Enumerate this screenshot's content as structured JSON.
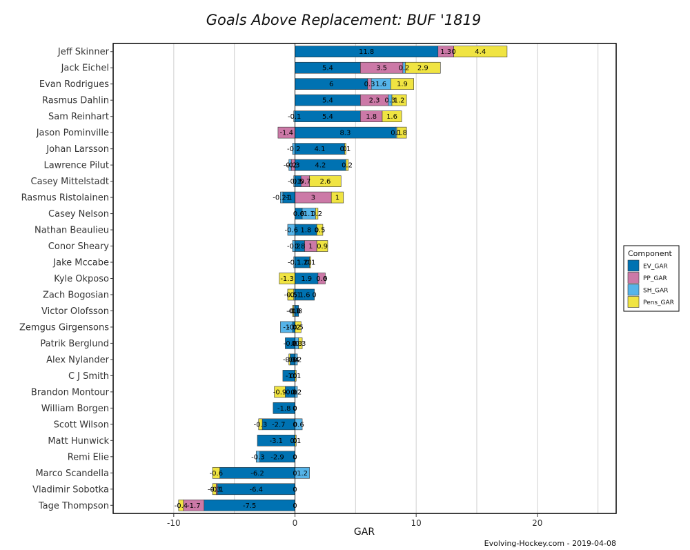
{
  "chart_data": {
    "type": "bar",
    "orientation": "horizontal",
    "stacked": true,
    "title": "Goals Above Replacement: BUF '1819",
    "xlabel": "GAR",
    "ylabel": "",
    "xlim": [
      -15,
      26.5
    ],
    "xticks": [
      -10,
      0,
      10,
      20
    ],
    "xtick_labels": [
      "-10",
      "0",
      "10",
      "20"
    ],
    "grid": true,
    "legend_position": "right",
    "legend_title": "Component",
    "caption": "Evolving-Hockey.com - 2019-04-08",
    "series": [
      {
        "name": "EV_GAR",
        "color": "#0072b2"
      },
      {
        "name": "PP_GAR",
        "color": "#cc79a7"
      },
      {
        "name": "SH_GAR",
        "color": "#56b4e9"
      },
      {
        "name": "Pens_GAR",
        "color": "#f0e442"
      }
    ],
    "rows": [
      {
        "player": "Jeff Skinner",
        "values": [
          11.8,
          1.3,
          0,
          4.4
        ],
        "labels": [
          "11.8",
          "1.3",
          "0",
          "4.4"
        ]
      },
      {
        "player": "Jack Eichel",
        "values": [
          5.4,
          3.5,
          0.2,
          2.9
        ],
        "labels": [
          "5.4",
          "3.5",
          "0.2",
          "2.9"
        ]
      },
      {
        "player": "Evan Rodrigues",
        "values": [
          6,
          0.3,
          1.6,
          1.9
        ],
        "labels": [
          "6",
          "0.3",
          "1.6",
          "1.9"
        ]
      },
      {
        "player": "Rasmus Dahlin",
        "values": [
          5.4,
          2.3,
          0.3,
          1.2
        ],
        "labels": [
          "5.4",
          "2.3",
          "0.3",
          "1.2"
        ]
      },
      {
        "player": "Sam Reinhart",
        "values": [
          5.4,
          1.8,
          -0.1,
          1.6
        ],
        "labels": [
          "5.4",
          "1.8",
          "-0.1",
          "1.6"
        ]
      },
      {
        "player": "Jason Pominville",
        "values": [
          8.3,
          -1.4,
          0.1,
          0.8
        ],
        "labels": [
          "8.3",
          "-1.4",
          "0.1",
          "0.8"
        ]
      },
      {
        "player": "Johan Larsson",
        "values": [
          4.1,
          0,
          -0.2,
          0.1
        ],
        "labels": [
          "4.1",
          "0",
          "-0.2",
          "0.1"
        ]
      },
      {
        "player": "Lawrence Pilut",
        "values": [
          4.2,
          -0.3,
          -0.2,
          0.2
        ],
        "labels": [
          "4.2",
          "-0.3",
          "-0.2",
          "0.2"
        ]
      },
      {
        "player": "Casey Mittelstadt",
        "values": [
          0.5,
          0.7,
          -0.1,
          2.6
        ],
        "labels": [
          "0.5",
          "0.7",
          "-0.1",
          "2.6"
        ]
      },
      {
        "player": "Rasmus Ristolainen",
        "values": [
          -1,
          3,
          -0.2,
          1
        ],
        "labels": [
          "-1",
          "3",
          "-0.21",
          "1"
        ]
      },
      {
        "player": "Casey Nelson",
        "values": [
          0.6,
          0,
          1.1,
          0.2
        ],
        "labels": [
          "0.6",
          "0",
          "1.1",
          "0.2"
        ]
      },
      {
        "player": "Nathan Beaulieu",
        "values": [
          1.8,
          0,
          -0.6,
          0.5
        ],
        "labels": [
          "1.8",
          "0",
          "-0.6",
          "0.5"
        ]
      },
      {
        "player": "Conor Sheary",
        "values": [
          0.8,
          1,
          -0.2,
          0.9
        ],
        "labels": [
          "0.8",
          "1",
          "-0.2",
          "0.9"
        ]
      },
      {
        "player": "Jake Mccabe",
        "values": [
          1.2,
          0,
          -0.1,
          0.1
        ],
        "labels": [
          "1.2",
          "0",
          "-0.1",
          "0.1"
        ]
      },
      {
        "player": "Kyle Okposo",
        "values": [
          1.9,
          0.6,
          0,
          -1.3
        ],
        "labels": [
          "1.9",
          "0.6",
          "0",
          "-1.3"
        ]
      },
      {
        "player": "Zach Bogosian",
        "values": [
          1.6,
          0,
          -0.1,
          -0.5
        ],
        "labels": [
          "1.6",
          "0",
          "-0.1",
          "-0.5"
        ]
      },
      {
        "player": "Victor Olofsson",
        "values": [
          0.3,
          0,
          -0.1,
          -0.1
        ],
        "labels": [
          "0.3",
          "0",
          "-0.1",
          "-0.1"
        ]
      },
      {
        "player": "Zemgus Girgensons",
        "values": [
          -0.2,
          0,
          -1,
          0.5
        ],
        "labels": [
          "-0.2",
          "0",
          "-1",
          "0.5"
        ]
      },
      {
        "player": "Patrik Berglund",
        "values": [
          -0.8,
          0,
          0.3,
          0.3
        ],
        "labels": [
          "-0.8",
          "0",
          "0.3",
          "0.3"
        ]
      },
      {
        "player": "Alex Nylander",
        "values": [
          -0.4,
          0,
          0.2,
          -0.1
        ],
        "labels": [
          "-0.4",
          "0",
          "0.2",
          "-0.1"
        ]
      },
      {
        "player": "C J  Smith",
        "values": [
          -1,
          0,
          0,
          0.1
        ],
        "labels": [
          "-1",
          "0",
          "0",
          "0.1"
        ]
      },
      {
        "player": "Brandon Montour",
        "values": [
          -0.8,
          0,
          0.2,
          -0.9
        ],
        "labels": [
          "-0.8",
          "0",
          "0.2",
          "-0.9"
        ]
      },
      {
        "player": "William Borgen",
        "values": [
          -1.8,
          0,
          0,
          0
        ],
        "labels": [
          "-1.8",
          "0",
          "0",
          "0"
        ]
      },
      {
        "player": "Scott Wilson",
        "values": [
          -2.7,
          0,
          0.6,
          -0.3
        ],
        "labels": [
          "-2.7",
          "0",
          "0.6",
          "-0.3"
        ]
      },
      {
        "player": "Matt Hunwick",
        "values": [
          -3.1,
          0,
          0,
          0.1
        ],
        "labels": [
          "-3.1",
          "0",
          "0",
          "0.1"
        ]
      },
      {
        "player": "Remi Elie",
        "values": [
          -2.9,
          0,
          -0.3,
          0
        ],
        "labels": [
          "-2.9",
          "0",
          "-0.3",
          "0"
        ]
      },
      {
        "player": "Marco Scandella",
        "values": [
          -6.2,
          0,
          1.2,
          -0.6
        ],
        "labels": [
          "-6.2",
          "0",
          "1.2",
          "-0.6"
        ]
      },
      {
        "player": "Vladimir Sobotka",
        "values": [
          -6.4,
          -0.1,
          0,
          -0.3
        ],
        "labels": [
          "-6.4",
          "-0.1",
          "0",
          "-0.3"
        ]
      },
      {
        "player": "Tage Thompson",
        "values": [
          -7.5,
          -1.7,
          0,
          -0.4
        ],
        "labels": [
          "-7.5",
          "-1.7",
          "0",
          "-0.4"
        ]
      }
    ]
  }
}
